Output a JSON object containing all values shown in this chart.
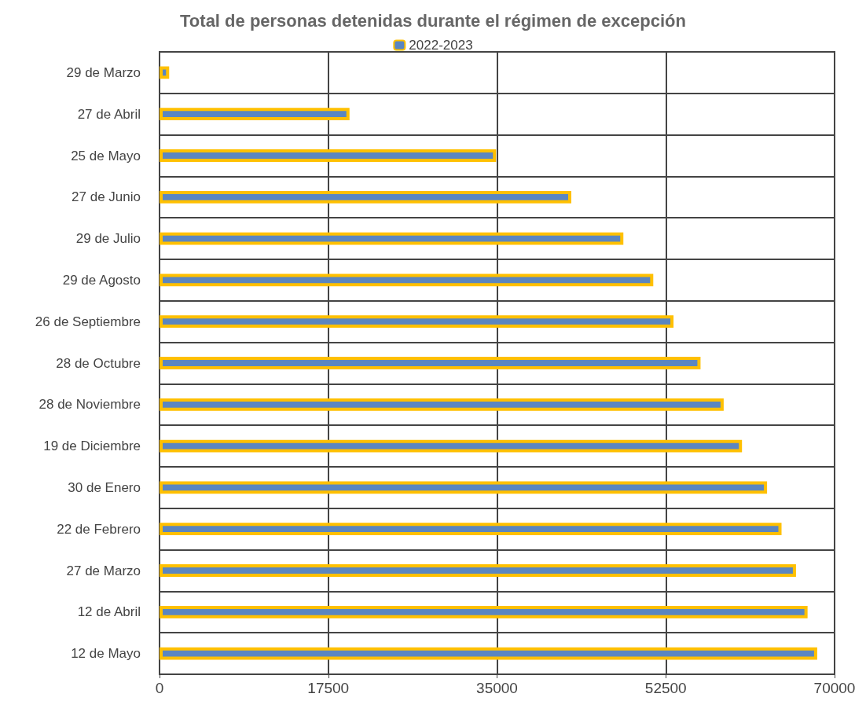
{
  "chart_data": {
    "type": "bar",
    "orientation": "horizontal",
    "title": "Total de personas detenidas durante el régimen de excepción",
    "categories": [
      "29 de Marzo",
      "27 de Abril",
      "25 de Mayo",
      "27 de Junio",
      "29 de Julio",
      "29 de Agosto",
      "26 de Septiembre",
      "28 de Octubre",
      "28 de Noviembre",
      "19 de Diciembre",
      "30 de Enero",
      "22 de Febrero",
      "27 de Marzo",
      "12 de Abril",
      "12 de Mayo"
    ],
    "series": [
      {
        "name": "2022-2023",
        "color": "#5b86c0",
        "values": [
          1000,
          19700,
          34900,
          42700,
          48100,
          51200,
          53300,
          56100,
          58500,
          60400,
          63000,
          64500,
          66000,
          67200,
          68200
        ]
      }
    ],
    "xlim": [
      0,
      70000
    ],
    "xticks": [
      0,
      17500,
      35000,
      52500,
      70000
    ],
    "grid": true,
    "legend": "top"
  }
}
